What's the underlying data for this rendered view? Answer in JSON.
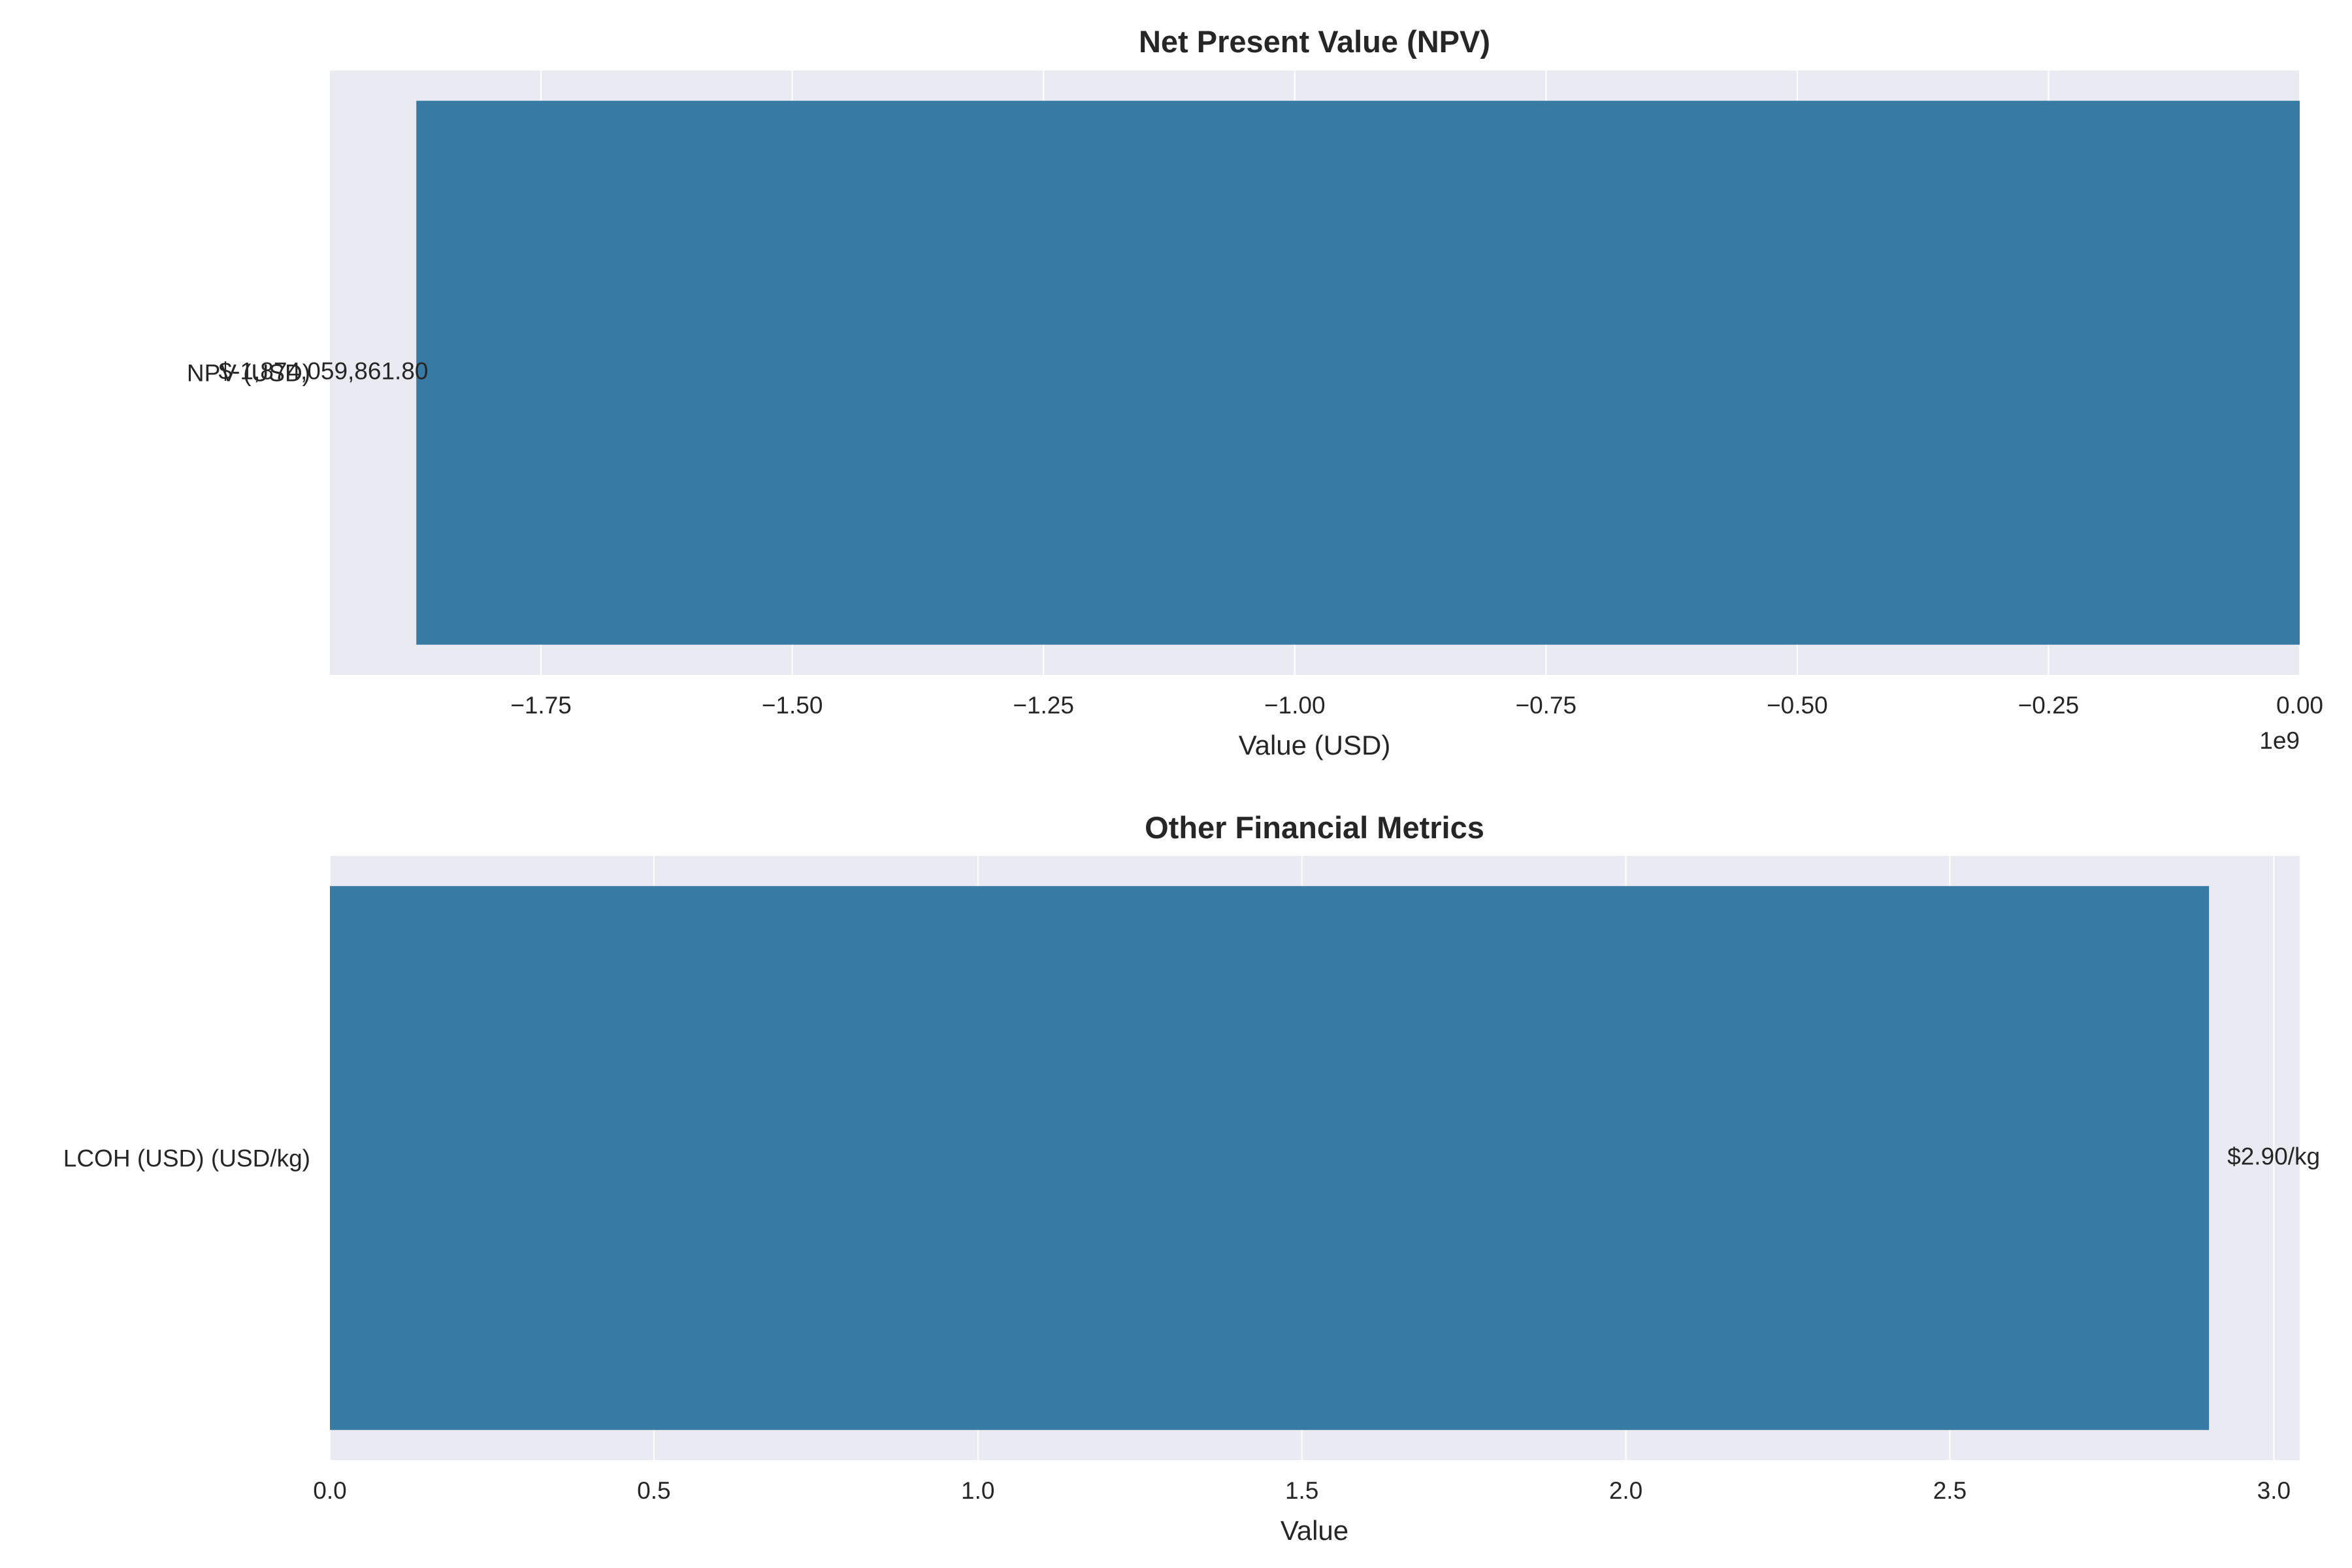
{
  "chart_data": [
    {
      "type": "bar",
      "orientation": "horizontal",
      "title": "Net Present Value (NPV)",
      "categories": [
        "NPV (USD)"
      ],
      "values": [
        -1874059861.8
      ],
      "data_labels": [
        "$-1,874,059,861.80"
      ],
      "xlabel": "Value (USD)",
      "ylabel": "",
      "xlim": [
        -1960000000.0,
        0
      ],
      "x_scale_text": "1e9",
      "xticks": [
        -1750000000.0,
        -1500000000.0,
        -1250000000.0,
        -1000000000.0,
        -750000000.0,
        -500000000.0,
        -250000000.0,
        0
      ],
      "xtick_labels": [
        "−1.75",
        "−1.50",
        "−1.25",
        "−1.00",
        "−0.75",
        "−0.50",
        "−0.25",
        "0.00"
      ],
      "grid": true,
      "bar_color": "#377ba5",
      "background_color": "#eaeaf2"
    },
    {
      "type": "bar",
      "orientation": "horizontal",
      "title": "Other Financial Metrics",
      "categories": [
        "LCOH (USD) (USD/kg)"
      ],
      "values": [
        2.9
      ],
      "data_labels": [
        "$2.90/kg"
      ],
      "xlabel": "Value",
      "ylabel": "",
      "xlim": [
        0,
        3.04
      ],
      "xticks": [
        0,
        0.5,
        1.0,
        1.5,
        2.0,
        2.5,
        3.0
      ],
      "xtick_labels": [
        "0.0",
        "0.5",
        "1.0",
        "1.5",
        "2.0",
        "2.5",
        "3.0"
      ],
      "grid": true,
      "bar_color": "#377ba5",
      "background_color": "#eaeaf2"
    }
  ]
}
